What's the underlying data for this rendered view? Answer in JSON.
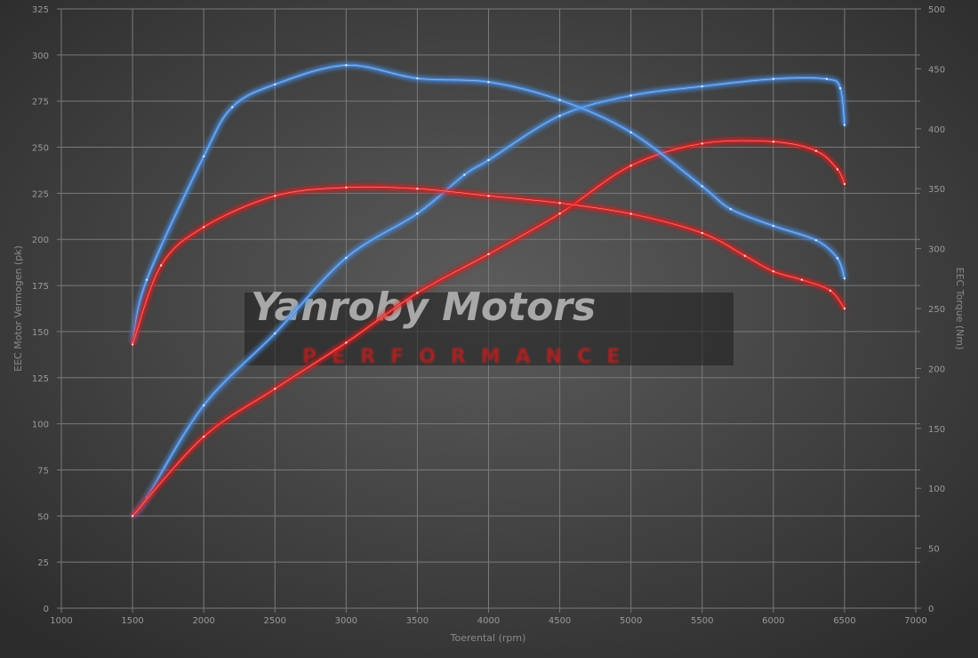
{
  "chart_data": {
    "type": "line",
    "title": "",
    "xlabel": "Toerental (rpm)",
    "ylabel": "EEC Motor Vermogen (pk)",
    "y2label": "EEC Torque (Nm)",
    "xlim": [
      1000,
      7000
    ],
    "ylim": [
      0,
      325
    ],
    "y2lim": [
      0,
      500
    ],
    "xticks": [
      1000,
      1500,
      2000,
      2500,
      3000,
      3500,
      4000,
      4500,
      5000,
      5500,
      6000,
      6500,
      7000
    ],
    "yticks": [
      0,
      25,
      50,
      75,
      100,
      125,
      150,
      175,
      200,
      225,
      250,
      275,
      300,
      325
    ],
    "y2ticks": [
      0,
      50,
      100,
      150,
      200,
      250,
      300,
      350,
      400,
      450,
      500
    ],
    "grid": true,
    "legend": "none",
    "colors": {
      "blue": "#4a90e8",
      "red": "#e82020",
      "background": "#3a3a3a",
      "grid": "#7a7a7a"
    },
    "series": [
      {
        "axis": "left",
        "color": "#4a90e8",
        "x": [
          1500,
          1600,
          2000,
          2500,
          3000,
          3500,
          3830,
          4000,
          4500,
          5000,
          5500,
          6000,
          6375,
          6470,
          6500
        ],
        "values": [
          50,
          60,
          110,
          149,
          190,
          214,
          235,
          243,
          267,
          278,
          283,
          287,
          287,
          282,
          262
        ]
      },
      {
        "axis": "left",
        "color": "#e82020",
        "x": [
          1500,
          2000,
          2500,
          3000,
          3500,
          4000,
          4500,
          5000,
          5500,
          6000,
          6300,
          6450,
          6500
        ],
        "values": [
          50,
          93,
          119,
          144,
          171,
          192,
          214,
          240,
          252,
          253,
          248,
          238,
          230
        ]
      },
      {
        "axis": "right",
        "color": "#4a90e8",
        "x": [
          1500,
          1600,
          2000,
          2200,
          2500,
          3000,
          3500,
          4000,
          4500,
          5000,
          5500,
          5700,
          6000,
          6300,
          6450,
          6500
        ],
        "values": [
          222,
          274,
          377,
          418,
          437,
          453,
          442,
          439,
          424,
          397,
          352,
          333,
          319,
          307,
          292,
          275
        ]
      },
      {
        "axis": "right",
        "color": "#e82020",
        "x": [
          1500,
          1700,
          2000,
          2500,
          3000,
          3500,
          4000,
          4500,
          5000,
          5500,
          5800,
          6000,
          6200,
          6400,
          6500
        ],
        "values": [
          220,
          286,
          318,
          344,
          351,
          350,
          344,
          338,
          329,
          313,
          294,
          281,
          274,
          265,
          250
        ]
      }
    ]
  },
  "logo": {
    "line1": "Yanroby Motors",
    "line2": "PERFORMANCE"
  }
}
